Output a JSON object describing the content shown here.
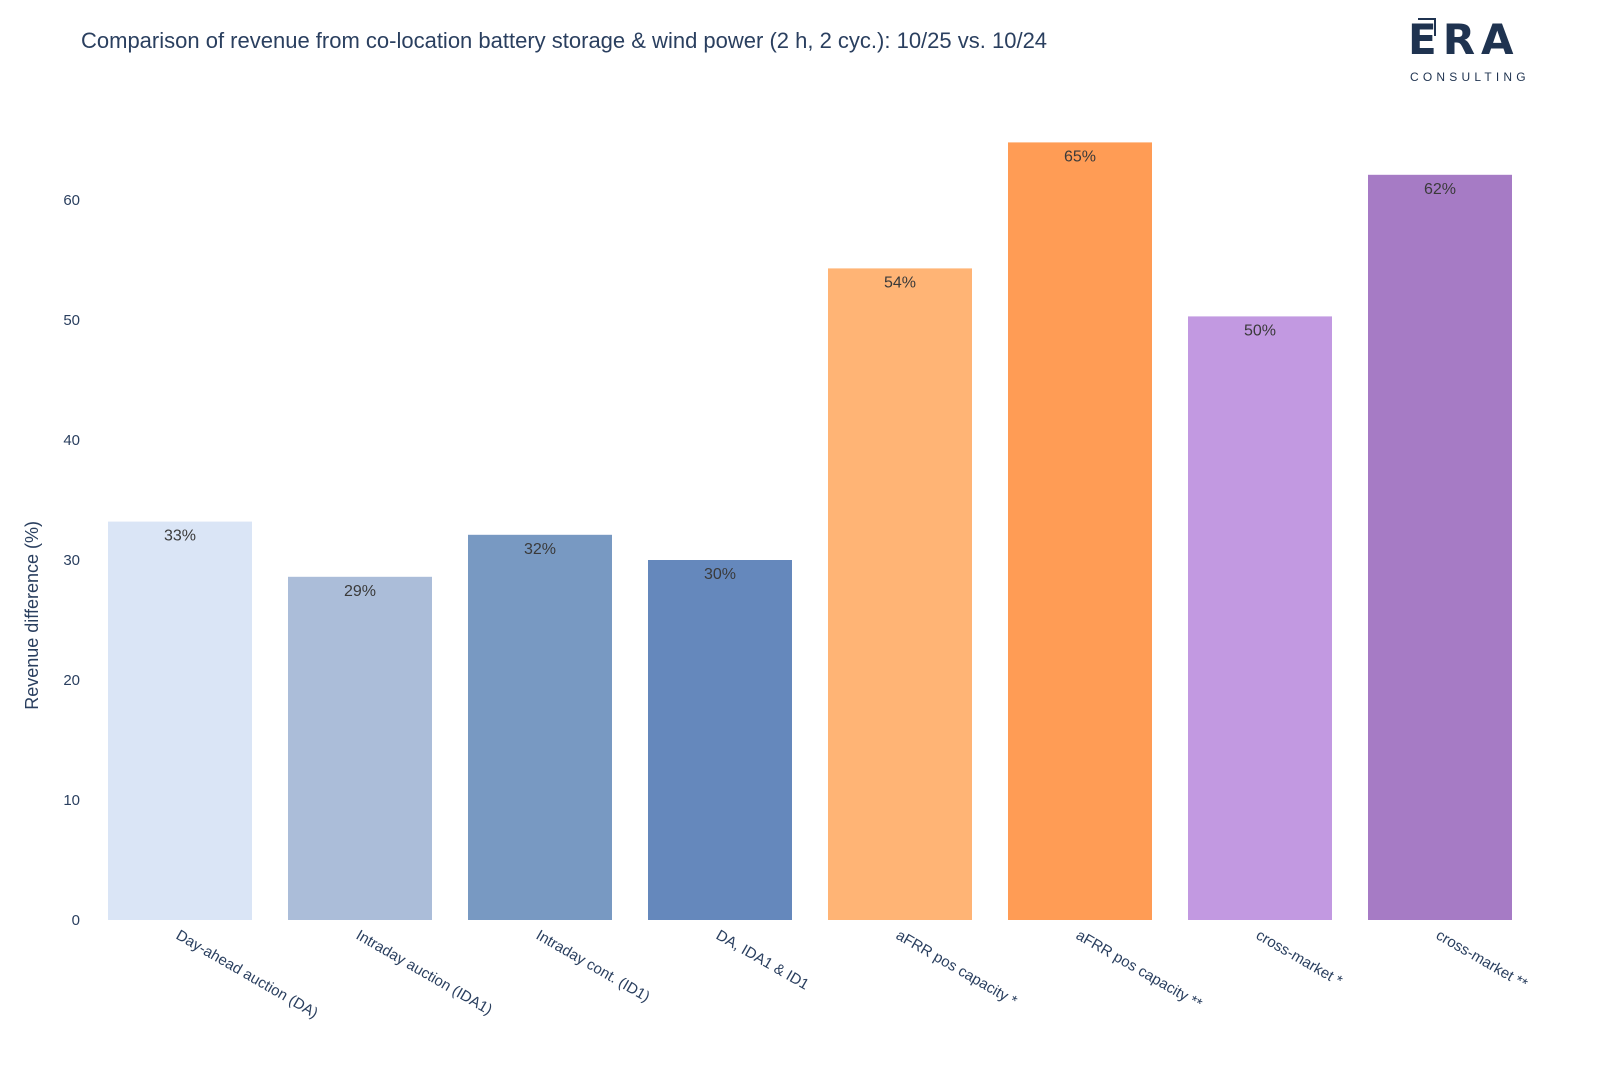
{
  "chart_data": {
    "type": "bar",
    "title": "Comparison of revenue from co-location battery storage & wind power (2 h, 2 cyc.): 10/25 vs. 10/24",
    "xlabel": "",
    "ylabel": "Revenue difference (%)",
    "ylim": [
      0,
      66
    ],
    "yticks": [
      0,
      10,
      20,
      30,
      40,
      50,
      60
    ],
    "grid": false,
    "categories": [
      "Day-ahead auction (DA)",
      "Intraday auction (IDA1)",
      "Intraday cont. (ID1)",
      "DA, IDA1 & ID1",
      "aFRR pos capacity *",
      "aFRR pos capacity **",
      "cross-market *",
      "cross-market **"
    ],
    "values": [
      33.2,
      28.6,
      32.1,
      30.0,
      54.3,
      64.8,
      50.3,
      62.1
    ],
    "data_labels": [
      "33%",
      "29%",
      "32%",
      "30%",
      "54%",
      "65%",
      "50%",
      "62%"
    ],
    "colors": [
      "#dae5f6",
      "#abbdd9",
      "#7899c2",
      "#6588bc",
      "#ffb475",
      "#ff9c55",
      "#c299e1",
      "#a67bc5"
    ]
  },
  "logo": {
    "word": "ERA",
    "sub": "CONSULTING"
  }
}
